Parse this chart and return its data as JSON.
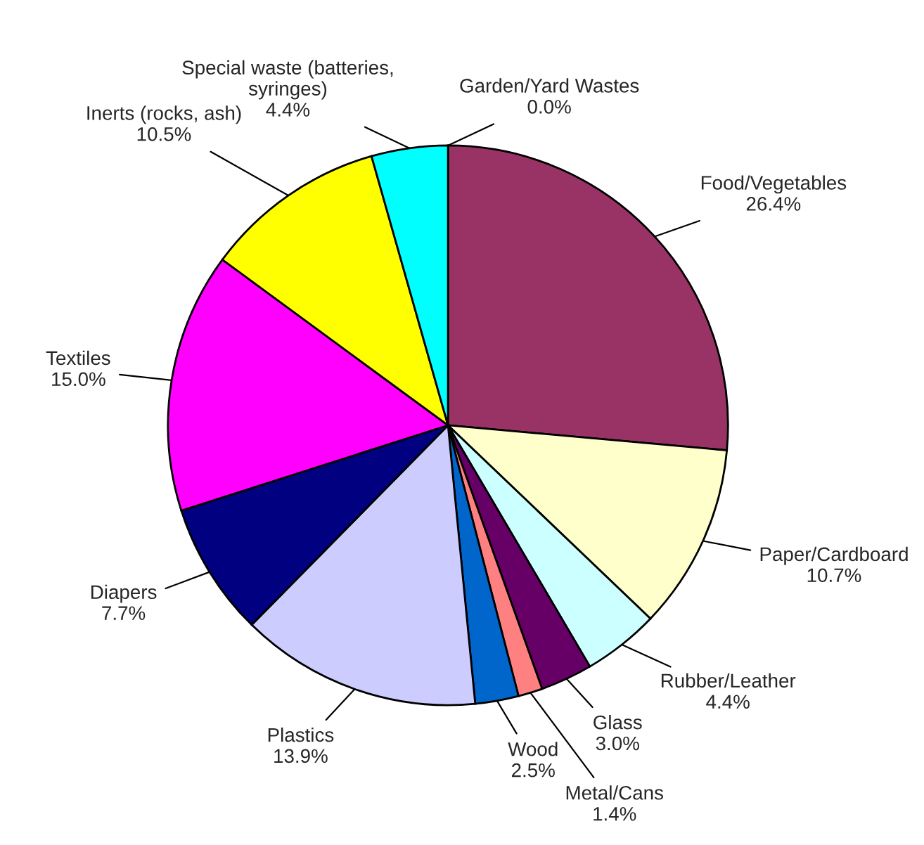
{
  "chart_data": {
    "type": "pie",
    "categories": [
      "Garden/Yard Wastes",
      "Food/Vegetables",
      "Paper/Cardboard",
      "Rubber/Leather",
      "Glass",
      "Metal/Cans",
      "Wood",
      "Plastics",
      "Diapers",
      "Textiles",
      "Inerts (rocks, ash)",
      "Special waste (batteries,\nsyringes)"
    ],
    "values": [
      0.0,
      26.4,
      10.7,
      4.4,
      3.0,
      1.4,
      2.5,
      13.9,
      7.7,
      15.0,
      10.5,
      4.4
    ],
    "value_labels": [
      "0.0%",
      "26.4%",
      "10.7%",
      "4.4%",
      "3.0%",
      "1.4%",
      "2.5%",
      "13.9%",
      "7.7%",
      "15.0%",
      "10.5%",
      "4.4%"
    ],
    "colors": [
      "#9999ff",
      "#993366",
      "#ffffcc",
      "#ccffff",
      "#660066",
      "#ff8080",
      "#0066cc",
      "#ccccff",
      "#000080",
      "#ff00ff",
      "#ffff00",
      "#00ffff"
    ]
  }
}
